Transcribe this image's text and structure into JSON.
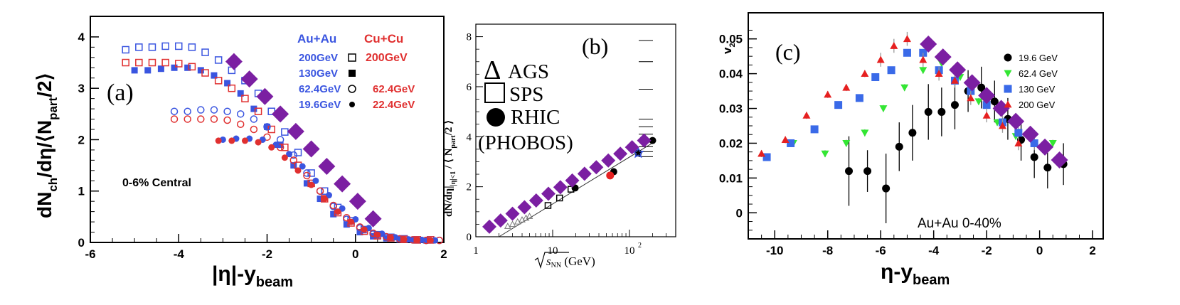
{
  "chart_data": [
    {
      "panel": "(a)",
      "type": "scatter",
      "panel_label": "(a)",
      "ylabel_main": "dN",
      "ylabel_sub1": "ch",
      "ylabel_mid": "/dη/⟨N",
      "ylabel_sub2": "part",
      "ylabel_end": "/2⟩",
      "xlabel_main": "|η|-y",
      "xlabel_sub": "beam",
      "annotation": "0-6% Central",
      "xlim": [
        -6,
        2
      ],
      "ylim": [
        0,
        4.4
      ],
      "xticks": [
        -6,
        -4,
        -2,
        0,
        2
      ],
      "yticks": [
        0,
        1,
        2,
        3,
        4
      ],
      "legend": {
        "header_left": "Au+Au",
        "header_right": "Cu+Cu",
        "rows": [
          {
            "left": "200GeV",
            "right": "200GeV",
            "marker": "open-square"
          },
          {
            "left": "130GeV",
            "right": "",
            "marker": "filled-square"
          },
          {
            "left": "62.4GeV",
            "right": "62.4GeV",
            "marker": "open-circle"
          },
          {
            "left": "19.6GeV",
            "right": "22.4GeV",
            "marker": "filled-circle"
          }
        ]
      },
      "colors": {
        "auau": "#3a55e0",
        "cucu": "#e03030",
        "band": "#7b1fa2"
      },
      "series": [
        {
          "name": "Au+Au 200GeV",
          "marker": "open-square",
          "color": "#3a55e0",
          "x": [
            -5.2,
            -4.9,
            -4.6,
            -4.3,
            -4.0,
            -3.7,
            -3.4,
            -3.1,
            -2.8,
            -2.5,
            -2.2,
            -1.9,
            -1.6,
            -1.3,
            -1.0,
            -0.7,
            -0.4,
            -0.1,
            0.2,
            0.5,
            0.8,
            1.1,
            1.4,
            1.7
          ],
          "y": [
            3.75,
            3.8,
            3.8,
            3.82,
            3.82,
            3.8,
            3.7,
            3.55,
            3.35,
            3.15,
            2.9,
            2.55,
            2.15,
            1.75,
            1.35,
            1.0,
            0.68,
            0.42,
            0.25,
            0.15,
            0.1,
            0.07,
            0.05,
            0.05
          ]
        },
        {
          "name": "Au+Au 130GeV",
          "marker": "filled-square",
          "color": "#3a55e0",
          "x": [
            -5.0,
            -4.7,
            -4.4,
            -4.1,
            -3.8,
            -3.5,
            -3.2,
            -2.9,
            -2.6,
            -2.3,
            -2.0,
            -1.7,
            -1.4,
            -1.1,
            -0.8,
            -0.5,
            -0.2,
            0.1,
            0.4,
            0.7,
            1.0,
            1.3,
            1.6
          ],
          "y": [
            3.35,
            3.35,
            3.38,
            3.4,
            3.4,
            3.35,
            3.25,
            3.1,
            2.9,
            2.6,
            2.25,
            1.9,
            1.5,
            1.15,
            0.85,
            0.55,
            0.35,
            0.2,
            0.12,
            0.08,
            0.06,
            0.05,
            0.04
          ]
        },
        {
          "name": "Cu+Cu 200GeV",
          "marker": "open-square",
          "color": "#e03030",
          "x": [
            -5.2,
            -4.9,
            -4.6,
            -4.3,
            -4.0,
            -3.7,
            -3.4,
            -3.1,
            -2.8,
            -2.5,
            -2.2,
            -1.9,
            -1.6,
            -1.3,
            -1.0,
            -0.7,
            -0.4,
            -0.1,
            0.2,
            0.5,
            0.8,
            1.1,
            1.4,
            1.7
          ],
          "y": [
            3.5,
            3.5,
            3.5,
            3.5,
            3.48,
            3.42,
            3.3,
            3.15,
            3.0,
            2.8,
            2.55,
            2.2,
            1.85,
            1.5,
            1.15,
            0.85,
            0.58,
            0.38,
            0.22,
            0.13,
            0.09,
            0.06,
            0.05,
            0.05
          ]
        },
        {
          "name": "Au+Au 62.4GeV",
          "marker": "open-circle",
          "color": "#3a55e0",
          "x": [
            -4.1,
            -3.8,
            -3.5,
            -3.2,
            -2.9,
            -2.6,
            -2.3,
            -2.0,
            -1.7,
            -1.4,
            -1.1,
            -0.8,
            -0.5,
            -0.2,
            0.1,
            0.4,
            0.7,
            1.0,
            1.3,
            1.6,
            1.9
          ],
          "y": [
            2.55,
            2.55,
            2.58,
            2.58,
            2.55,
            2.5,
            2.4,
            2.25,
            2.0,
            1.7,
            1.35,
            1.0,
            0.7,
            0.45,
            0.28,
            0.16,
            0.1,
            0.07,
            0.05,
            0.04,
            0.04
          ]
        },
        {
          "name": "Cu+Cu 62.4GeV",
          "marker": "open-circle",
          "color": "#e03030",
          "x": [
            -4.1,
            -3.8,
            -3.5,
            -3.2,
            -2.9,
            -2.6,
            -2.3,
            -2.0,
            -1.7,
            -1.4,
            -1.1,
            -0.8,
            -0.5,
            -0.2,
            0.1,
            0.4,
            0.7,
            1.0,
            1.3,
            1.6,
            1.9
          ],
          "y": [
            2.4,
            2.4,
            2.4,
            2.4,
            2.38,
            2.3,
            2.2,
            2.05,
            1.85,
            1.6,
            1.3,
            1.0,
            0.72,
            0.48,
            0.3,
            0.18,
            0.11,
            0.07,
            0.05,
            0.04,
            0.04
          ]
        },
        {
          "name": "Au+Au 19.6GeV",
          "marker": "filled-circle",
          "color": "#3a55e0",
          "x": [
            -3.0,
            -2.7,
            -2.4,
            -2.1,
            -1.8,
            -1.5,
            -1.2,
            -0.9,
            -0.6,
            -0.3,
            0.0,
            0.3,
            0.6,
            0.9,
            1.2,
            1.5,
            1.8
          ],
          "y": [
            2.0,
            2.02,
            2.02,
            2.0,
            1.9,
            1.72,
            1.48,
            1.2,
            0.92,
            0.66,
            0.45,
            0.28,
            0.17,
            0.1,
            0.06,
            0.05,
            0.04
          ]
        },
        {
          "name": "Cu+Cu 22.4GeV",
          "marker": "filled-circle",
          "color": "#e03030",
          "x": [
            -3.1,
            -2.8,
            -2.5,
            -2.2,
            -1.9,
            -1.6,
            -1.3,
            -1.0,
            -0.7,
            -0.4,
            -0.1,
            0.2,
            0.5,
            0.8,
            1.1,
            1.4,
            1.7
          ],
          "y": [
            1.98,
            1.98,
            1.98,
            1.95,
            1.85,
            1.65,
            1.4,
            1.12,
            0.85,
            0.6,
            0.4,
            0.25,
            0.15,
            0.09,
            0.06,
            0.05,
            0.04
          ]
        }
      ],
      "band": {
        "x": [
          -2.75,
          -2.4,
          -2.05,
          -1.7,
          -1.35,
          -1.0,
          -0.65,
          -0.3,
          0.05,
          0.4
        ],
        "y": [
          3.52,
          3.18,
          2.84,
          2.5,
          2.16,
          1.82,
          1.48,
          1.14,
          0.8,
          0.46
        ]
      }
    },
    {
      "panel": "(b)",
      "type": "scatter",
      "panel_label": "(b)",
      "ylabel": "dN/dη|",
      "ylabel_sub": "|η|<1",
      "ylabel_end": " / ⟨ N",
      "ylabel_sub2": "part",
      "ylabel_end2": "/2 ⟩",
      "xlabel_root": "s",
      "xlabel_sub": "NN",
      "xlabel_unit": " (GeV)",
      "xscale": "log",
      "xlim": [
        1,
        400
      ],
      "ylim": [
        0,
        8.5
      ],
      "xticks": [
        {
          "v": 1,
          "label": "1"
        },
        {
          "v": 10,
          "label": "10"
        },
        {
          "v": 100,
          "label": "10",
          "sup": "2"
        }
      ],
      "yticks": [
        0,
        2,
        4,
        6,
        8
      ],
      "legend": [
        {
          "symbol": "Δ",
          "label": "AGS"
        },
        {
          "symbol": "□",
          "label": "SPS"
        },
        {
          "symbol": "●",
          "label": "RHIC"
        },
        {
          "symbol": "",
          "label": "(PHOBOS)"
        }
      ],
      "fit_line": {
        "x": [
          2.0,
          200.0
        ],
        "y": [
          0.0,
          3.75
        ]
      },
      "series": [
        {
          "name": "AGS",
          "marker": "open-triangle",
          "x": [
            2.6,
            3.0,
            3.5,
            4.0,
            4.5,
            5.0
          ],
          "y": [
            0.42,
            0.5,
            0.6,
            0.68,
            0.75,
            0.82
          ]
        },
        {
          "name": "SPS",
          "marker": "open-square",
          "x": [
            8.7,
            12.3,
            17.3
          ],
          "y": [
            1.25,
            1.55,
            1.9
          ]
        },
        {
          "name": "RHIC",
          "marker": "filled-circle",
          "x": [
            19.6,
            62.4,
            130,
            200
          ],
          "y": [
            1.95,
            2.6,
            3.35,
            3.85
          ]
        },
        {
          "name": "Cu+Cu",
          "marker": "red-circle",
          "x": [
            56
          ],
          "y": [
            2.45
          ]
        },
        {
          "name": "star",
          "marker": "star",
          "x": [
            130
          ],
          "y": [
            3.35
          ]
        }
      ],
      "side_ticks_y": [
        7.85,
        7.0,
        5.9,
        4.7,
        4.4,
        4.1,
        3.8,
        3.6,
        3.4,
        3.2
      ],
      "band": {
        "x": [
          1.5,
          2.1,
          3.0,
          4.3,
          6.1,
          8.8,
          12.6,
          18,
          26,
          37,
          53,
          76,
          108,
          155
        ],
        "y": [
          0.4,
          0.65,
          0.92,
          1.18,
          1.45,
          1.72,
          1.98,
          2.25,
          2.52,
          2.78,
          3.05,
          3.32,
          3.58,
          3.85
        ]
      }
    },
    {
      "panel": "(c)",
      "type": "scatter",
      "panel_label": "(c)",
      "ylabel": "v",
      "ylabel_sub": "2",
      "xlabel_main": "η-y",
      "xlabel_sub": "beam",
      "annotation": "Au+Au 0-40%",
      "xlim": [
        -11,
        2.4
      ],
      "ylim": [
        -0.0075,
        0.0575
      ],
      "xticks": [
        -10,
        -8,
        -6,
        -4,
        -2,
        0,
        2
      ],
      "yticks": [
        0,
        0.01,
        0.02,
        0.03,
        0.04,
        0.05
      ],
      "ytick_labels": [
        "0",
        "0.01",
        "0.02",
        "0.03",
        "0.04",
        "0.05"
      ],
      "legend": [
        {
          "label": "19.6 GeV",
          "color": "#000000",
          "marker": "circle"
        },
        {
          "label": "62.4 GeV",
          "color": "#33e633",
          "marker": "triangle-down"
        },
        {
          "label": "130 GeV",
          "color": "#3a6ae8",
          "marker": "square"
        },
        {
          "label": "200 GeV",
          "color": "#e62020",
          "marker": "triangle-up"
        }
      ],
      "series": [
        {
          "name": "19.6 GeV",
          "color": "#000000",
          "marker": "circle",
          "x": [
            -7.2,
            -6.5,
            -5.8,
            -5.3,
            -4.8,
            -4.2,
            -3.7,
            -3.2,
            -2.7,
            -2.2,
            -1.7,
            -1.2,
            -0.7,
            -0.2,
            0.3,
            0.9
          ],
          "y": [
            0.012,
            0.012,
            0.007,
            0.019,
            0.023,
            0.029,
            0.029,
            0.031,
            0.035,
            0.036,
            0.032,
            0.027,
            0.021,
            0.016,
            0.013,
            0.014
          ],
          "err": [
            0.01,
            0.006,
            0.01,
            0.007,
            0.008,
            0.008,
            0.007,
            0.007,
            0.006,
            0.006,
            0.006,
            0.006,
            0.006,
            0.006,
            0.006,
            0.006
          ]
        },
        {
          "name": "62.4 GeV",
          "color": "#33e633",
          "marker": "triangle-down",
          "x": [
            -9.3,
            -8.1,
            -7.3,
            -6.6,
            -5.9,
            -5.1,
            -4.4,
            -3.7,
            -3.0,
            -2.3,
            -1.6,
            -0.9,
            -0.2,
            0.5
          ],
          "y": [
            0.02,
            0.017,
            0.02,
            0.023,
            0.03,
            0.036,
            0.041,
            0.043,
            0.039,
            0.032,
            0.026,
            0.022,
            0.02,
            0.02
          ],
          "err": [
            0.001,
            0.001,
            0.001,
            0.001,
            0.001,
            0.001,
            0.001,
            0.001,
            0.001,
            0.001,
            0.001,
            0.001,
            0.001,
            0.001
          ]
        },
        {
          "name": "130 GeV",
          "color": "#3a6ae8",
          "marker": "square",
          "x": [
            -10.3,
            -9.4,
            -8.5,
            -7.6,
            -6.8,
            -6.2,
            -5.6,
            -5.0,
            -4.4,
            -3.8,
            -3.2,
            -2.6,
            -2.0,
            -1.4,
            -0.8,
            -0.2
          ],
          "y": [
            0.016,
            0.02,
            0.024,
            0.031,
            0.033,
            0.039,
            0.041,
            0.046,
            0.046,
            0.041,
            0.038,
            0.035,
            0.031,
            0.026,
            0.023,
            0.02
          ],
          "err": [
            0.001,
            0.001,
            0.001,
            0.001,
            0.001,
            0.001,
            0.001,
            0.001,
            0.001,
            0.001,
            0.002,
            0.002,
            0.002,
            0.002,
            0.002,
            0.002
          ]
        },
        {
          "name": "200 GeV",
          "color": "#e62020",
          "marker": "triangle-up",
          "x": [
            -10.5,
            -9.6,
            -8.8,
            -8.0,
            -7.3,
            -6.6,
            -6.0,
            -5.5,
            -5.0,
            -4.4,
            -3.8,
            -3.2,
            -2.6,
            -2.0,
            -1.4,
            -0.8
          ],
          "y": [
            0.017,
            0.021,
            0.028,
            0.034,
            0.036,
            0.04,
            0.044,
            0.048,
            0.05,
            0.044,
            0.04,
            0.038,
            0.033,
            0.028,
            0.025,
            0.02
          ],
          "err": [
            0.001,
            0.001,
            0.001,
            0.001,
            0.001,
            0.001,
            0.002,
            0.002,
            0.002,
            0.002,
            0.002,
            0.002,
            0.002,
            0.002,
            0.002,
            0.002
          ]
        }
      ],
      "band": {
        "x": [
          -4.2,
          -3.65,
          -3.1,
          -2.55,
          -2.0,
          -1.45,
          -0.9,
          -0.35,
          0.2,
          0.75
        ],
        "y": [
          0.0485,
          0.0448,
          0.0411,
          0.0374,
          0.0337,
          0.03,
          0.0263,
          0.0226,
          0.0189,
          0.0152
        ]
      }
    }
  ]
}
